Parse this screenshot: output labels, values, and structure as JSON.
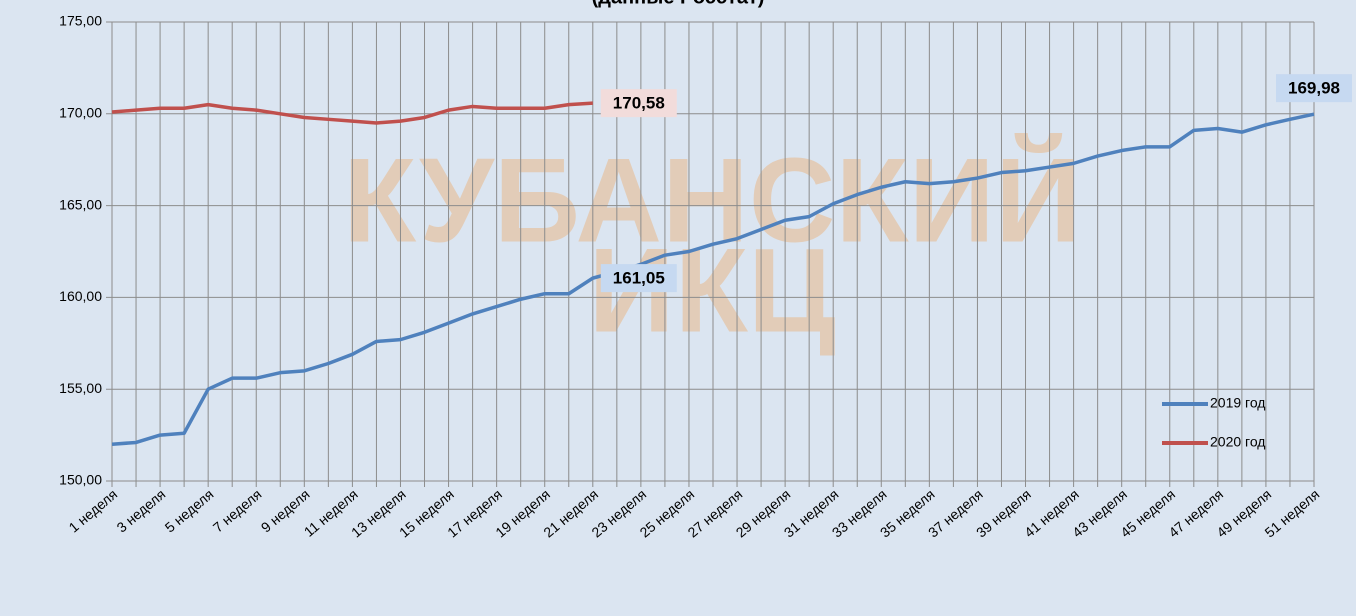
{
  "chart_data": {
    "type": "line",
    "title": "(данные Росстат)",
    "watermark": [
      "КУБАНСКИЙ",
      "ИКЦ"
    ],
    "categories": [
      "1 неделя",
      null,
      "3 неделя",
      null,
      "5 неделя",
      null,
      "7 неделя",
      null,
      "9 неделя",
      null,
      "11 неделя",
      null,
      "13 неделя",
      null,
      "15 неделя",
      null,
      "17 неделя",
      null,
      "19 неделя",
      null,
      "21 неделя",
      null,
      "23 неделя",
      null,
      "25 неделя",
      null,
      "27 неделя",
      null,
      "29 неделя",
      null,
      "31 неделя",
      null,
      "33 неделя",
      null,
      "35 неделя",
      null,
      "37 неделя",
      null,
      "39 неделя",
      null,
      "41 неделя",
      null,
      "43 неделя",
      null,
      "45 неделя",
      null,
      "47 неделя",
      null,
      "49 неделя",
      null,
      "51 неделя"
    ],
    "series": [
      {
        "name": "2019 год",
        "color": "#4f81bd",
        "values": [
          152.0,
          152.1,
          152.5,
          152.6,
          155.0,
          155.6,
          155.6,
          155.9,
          156.0,
          156.4,
          156.9,
          157.6,
          157.7,
          158.1,
          158.6,
          159.1,
          159.5,
          159.9,
          160.2,
          160.2,
          161.05,
          161.4,
          161.8,
          162.3,
          162.5,
          162.9,
          163.2,
          163.7,
          164.2,
          164.4,
          165.1,
          165.6,
          166.0,
          166.3,
          166.2,
          166.3,
          166.5,
          166.8,
          166.9,
          167.1,
          167.3,
          167.7,
          168.0,
          168.2,
          168.2,
          169.1,
          169.2,
          169.0,
          169.4,
          169.7,
          169.98
        ],
        "value_labels": [
          null,
          null,
          null,
          null,
          null,
          null,
          null,
          null,
          null,
          null,
          null,
          null,
          null,
          null,
          null,
          null,
          null,
          null,
          null,
          null,
          "161,05",
          null,
          null,
          null,
          null,
          null,
          null,
          null,
          null,
          null,
          null,
          null,
          null,
          null,
          null,
          null,
          null,
          null,
          null,
          null,
          null,
          null,
          null,
          null,
          null,
          null,
          null,
          null,
          null,
          null,
          "169,98"
        ]
      },
      {
        "name": "2020 год",
        "color": "#c0504d",
        "values": [
          170.1,
          170.2,
          170.3,
          170.3,
          170.5,
          170.3,
          170.2,
          170.0,
          169.8,
          169.7,
          169.6,
          169.5,
          169.6,
          169.8,
          170.2,
          170.4,
          170.3,
          170.3,
          170.3,
          170.5,
          170.58,
          null,
          null,
          null,
          null,
          null,
          null,
          null,
          null,
          null,
          null,
          null,
          null,
          null,
          null,
          null,
          null,
          null,
          null,
          null,
          null,
          null,
          null,
          null,
          null,
          null,
          null,
          null,
          null,
          null,
          null
        ],
        "value_labels": [
          null,
          null,
          null,
          null,
          null,
          null,
          null,
          null,
          null,
          null,
          null,
          null,
          null,
          null,
          null,
          null,
          null,
          null,
          null,
          null,
          "170,58",
          null,
          null,
          null,
          null,
          null,
          null,
          null,
          null,
          null,
          null,
          null,
          null,
          null,
          null,
          null,
          null,
          null,
          null,
          null,
          null,
          null,
          null,
          null,
          null,
          null,
          null,
          null,
          null,
          null,
          null
        ]
      }
    ],
    "ylim": [
      150,
      175
    ],
    "yticks": [
      {
        "value": 150,
        "label": "150,00"
      },
      {
        "value": 155,
        "label": "155,00"
      },
      {
        "value": 160,
        "label": "160,00"
      },
      {
        "value": 165,
        "label": "165,00"
      },
      {
        "value": 170,
        "label": "170,00"
      },
      {
        "value": 175,
        "label": "175,00"
      }
    ],
    "grid": true,
    "legend": "right"
  }
}
